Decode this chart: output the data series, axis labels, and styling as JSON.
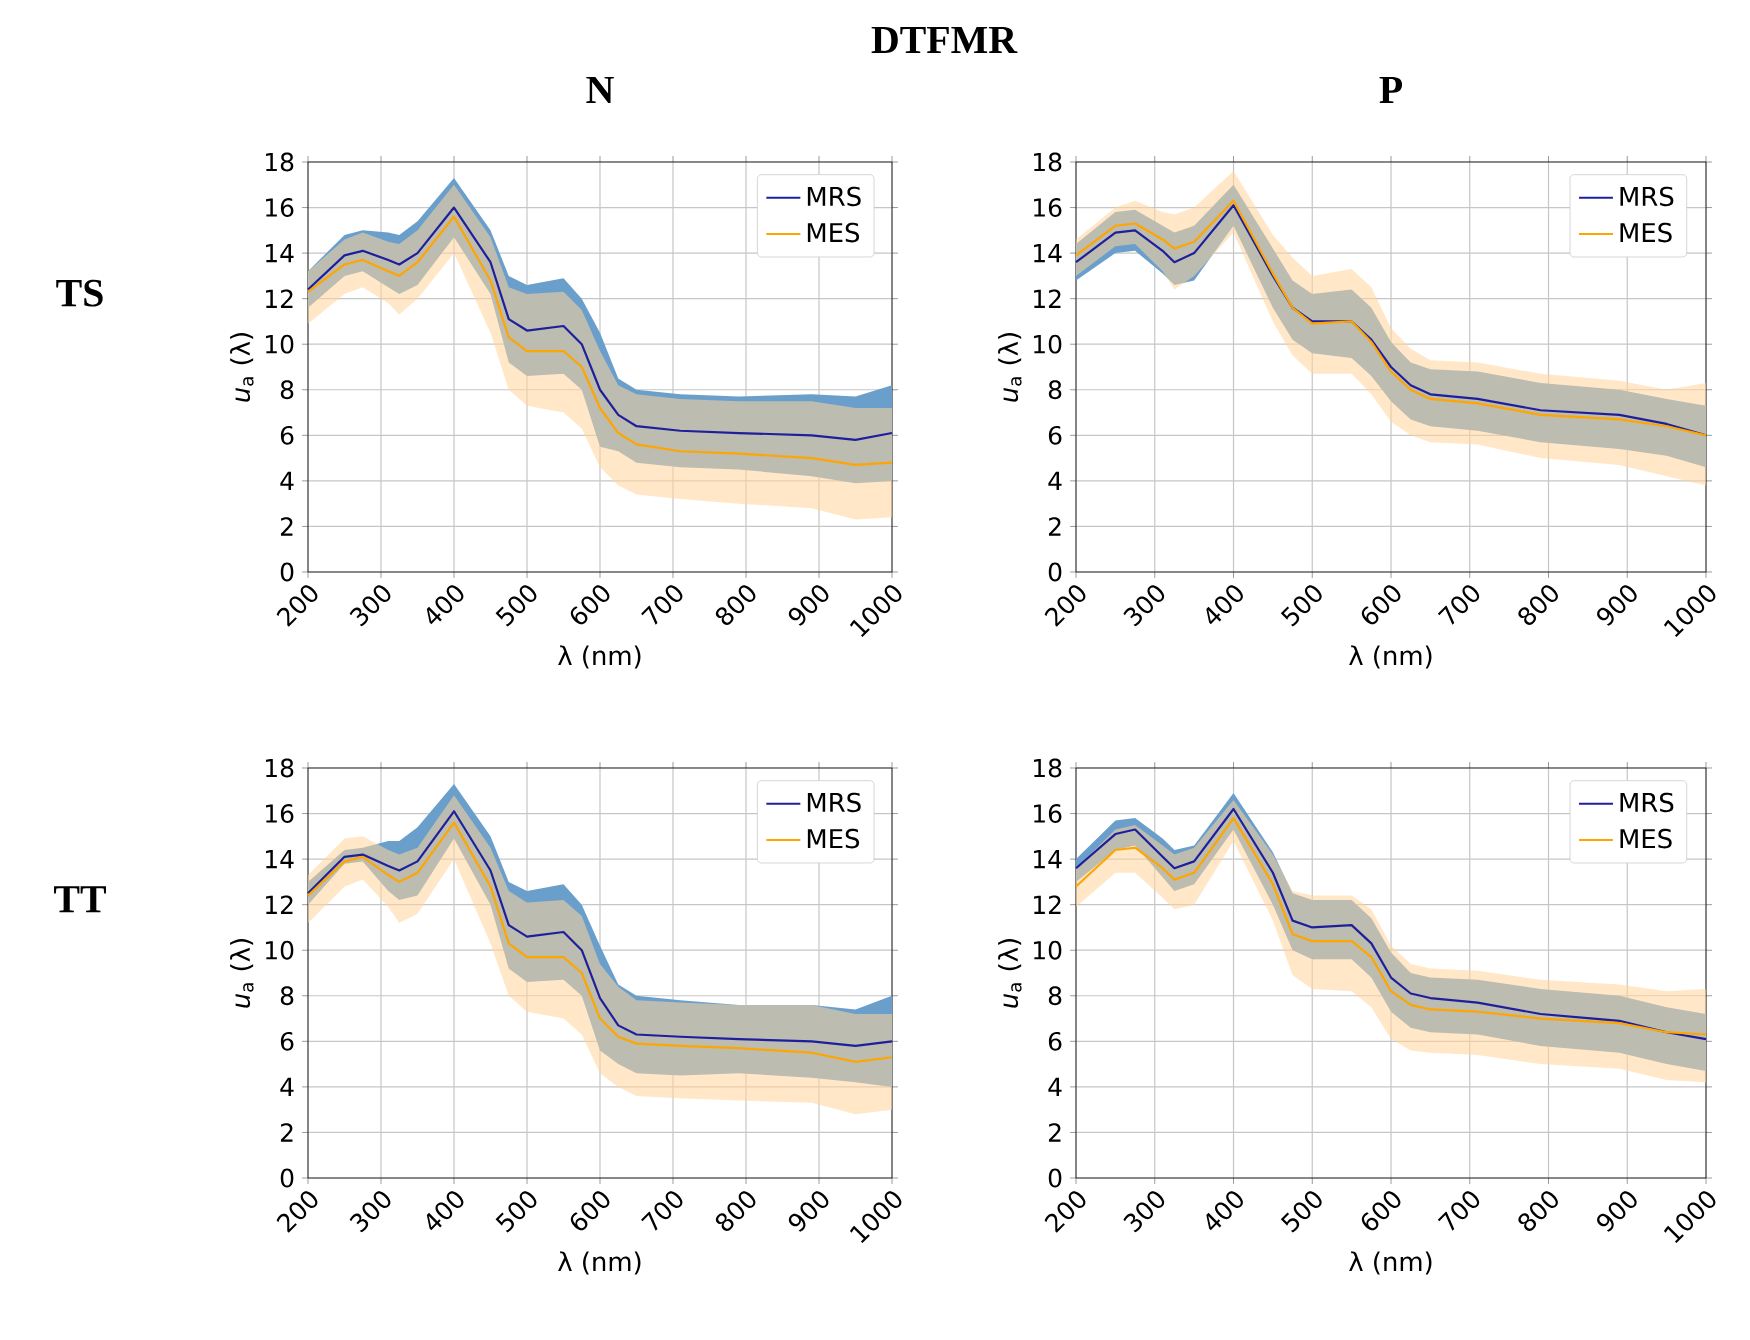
{
  "chart_data": [
    {
      "type": "line",
      "title": "N",
      "annotations": [
        "DTFMR",
        "TS"
      ],
      "xlabel": "λ (nm)",
      "ylabel": "*u*$_{a}$ (λ)",
      "x": [
        200,
        250,
        275,
        310,
        325,
        350,
        400,
        450,
        475,
        500,
        550,
        575,
        600,
        625,
        650,
        710,
        790,
        890,
        950,
        1000
      ],
      "xlim": [
        200,
        1000
      ],
      "ylim": [
        0,
        18
      ],
      "xticks": [
        200,
        300,
        400,
        500,
        600,
        700,
        800,
        900,
        1000
      ],
      "yticks": [
        0,
        2,
        4,
        6,
        8,
        10,
        12,
        14,
        16,
        18
      ],
      "grid": true,
      "legend": "top right",
      "series": [
        {
          "name": "MRS",
          "color": "#1f1f9c",
          "values": [
            12.4,
            13.9,
            14.1,
            13.7,
            13.5,
            14.0,
            16.0,
            13.6,
            11.1,
            10.6,
            10.8,
            10.0,
            8.0,
            6.9,
            6.4,
            6.2,
            6.1,
            6.0,
            5.8,
            6.1
          ],
          "upper": [
            13.2,
            14.8,
            15.0,
            14.9,
            14.8,
            15.4,
            17.3,
            15.0,
            13.0,
            12.6,
            12.9,
            12.0,
            10.5,
            8.5,
            8.0,
            7.8,
            7.7,
            7.8,
            7.7,
            8.2
          ],
          "lower": [
            11.6,
            13.0,
            13.2,
            12.5,
            12.2,
            12.6,
            14.7,
            12.2,
            9.2,
            8.6,
            8.7,
            8.0,
            5.5,
            5.3,
            4.8,
            4.6,
            4.5,
            4.2,
            3.9,
            4.0
          ]
        },
        {
          "name": "MES",
          "color": "#ffa500",
          "values": [
            12.3,
            13.5,
            13.7,
            13.2,
            13.0,
            13.6,
            15.6,
            12.8,
            10.3,
            9.7,
            9.7,
            9.0,
            7.2,
            6.1,
            5.6,
            5.3,
            5.2,
            5.0,
            4.7,
            4.8
          ],
          "upper": [
            13.2,
            14.6,
            14.9,
            14.5,
            14.4,
            15.0,
            17.0,
            14.7,
            12.5,
            12.2,
            12.3,
            11.5,
            9.7,
            8.2,
            7.8,
            7.6,
            7.5,
            7.5,
            7.2,
            7.2
          ],
          "lower": [
            10.9,
            12.2,
            12.5,
            11.8,
            11.3,
            12.0,
            14.0,
            10.5,
            8.0,
            7.3,
            7.0,
            6.3,
            4.6,
            3.8,
            3.4,
            3.2,
            3.0,
            2.8,
            2.3,
            2.4
          ]
        }
      ]
    },
    {
      "type": "line",
      "title": "P",
      "xlabel": "λ (nm)",
      "ylabel": "*u*$_{a}$ (λ)",
      "x": [
        200,
        250,
        275,
        310,
        325,
        350,
        400,
        450,
        475,
        500,
        550,
        575,
        600,
        625,
        650,
        710,
        790,
        890,
        950,
        1000
      ],
      "xlim": [
        200,
        1000
      ],
      "ylim": [
        0,
        18
      ],
      "xticks": [
        200,
        300,
        400,
        500,
        600,
        700,
        800,
        900,
        1000
      ],
      "yticks": [
        0,
        2,
        4,
        6,
        8,
        10,
        12,
        14,
        16,
        18
      ],
      "grid": true,
      "legend": "top right",
      "series": [
        {
          "name": "MRS",
          "color": "#1f1f9c",
          "values": [
            13.6,
            14.9,
            15.0,
            14.1,
            13.6,
            14.0,
            16.1,
            13.0,
            11.6,
            11.0,
            11.0,
            10.2,
            9.0,
            8.2,
            7.8,
            7.6,
            7.1,
            6.9,
            6.5,
            6.0
          ],
          "upper": [
            14.4,
            15.8,
            15.9,
            15.2,
            14.9,
            15.2,
            17.0,
            14.2,
            12.8,
            12.2,
            12.4,
            11.6,
            10.1,
            9.2,
            8.9,
            8.8,
            8.3,
            8.0,
            7.6,
            7.3
          ],
          "lower": [
            12.8,
            14.0,
            14.1,
            13.1,
            12.6,
            12.8,
            15.2,
            11.6,
            10.2,
            9.6,
            9.4,
            8.6,
            7.5,
            6.7,
            6.4,
            6.2,
            5.7,
            5.4,
            5.1,
            4.6
          ]
        },
        {
          "name": "MES",
          "color": "#ffa500",
          "values": [
            13.9,
            15.2,
            15.3,
            14.6,
            14.2,
            14.5,
            16.3,
            13.1,
            11.6,
            10.9,
            11.0,
            10.1,
            8.8,
            8.0,
            7.6,
            7.4,
            6.9,
            6.7,
            6.4,
            6.0
          ],
          "upper": [
            14.6,
            16.0,
            16.3,
            15.8,
            15.7,
            16.0,
            17.6,
            14.8,
            13.8,
            13.0,
            13.3,
            12.5,
            10.7,
            9.8,
            9.3,
            9.2,
            8.7,
            8.4,
            8.0,
            8.3
          ],
          "lower": [
            13.0,
            14.3,
            14.4,
            13.2,
            12.4,
            13.0,
            14.9,
            11.0,
            9.5,
            8.7,
            8.7,
            7.8,
            6.6,
            6.0,
            5.7,
            5.6,
            5.0,
            4.7,
            4.2,
            3.8
          ]
        }
      ]
    },
    {
      "type": "line",
      "annotations": [
        "TT"
      ],
      "xlabel": "λ (nm)",
      "ylabel": "*u*$_{a}$ (λ)",
      "x": [
        200,
        250,
        275,
        310,
        325,
        350,
        400,
        450,
        475,
        500,
        550,
        575,
        600,
        625,
        650,
        710,
        790,
        890,
        950,
        1000
      ],
      "xlim": [
        200,
        1000
      ],
      "ylim": [
        0,
        18
      ],
      "xticks": [
        200,
        300,
        400,
        500,
        600,
        700,
        800,
        900,
        1000
      ],
      "yticks": [
        0,
        2,
        4,
        6,
        8,
        10,
        12,
        14,
        16,
        18
      ],
      "grid": true,
      "legend": "top right",
      "series": [
        {
          "name": "MRS",
          "color": "#1f1f9c",
          "values": [
            12.5,
            14.1,
            14.2,
            13.7,
            13.5,
            13.9,
            16.1,
            13.5,
            11.1,
            10.6,
            10.8,
            10.0,
            7.9,
            6.7,
            6.3,
            6.2,
            6.1,
            6.0,
            5.8,
            6.0
          ],
          "upper": [
            13.0,
            14.4,
            14.5,
            14.8,
            14.8,
            15.4,
            17.3,
            15.0,
            13.0,
            12.6,
            12.9,
            12.0,
            10.2,
            8.5,
            8.0,
            7.8,
            7.6,
            7.6,
            7.4,
            8.0
          ],
          "lower": [
            12.0,
            13.8,
            13.9,
            12.6,
            12.2,
            12.4,
            14.9,
            12.0,
            9.2,
            8.6,
            8.7,
            8.0,
            5.6,
            5.0,
            4.6,
            4.5,
            4.6,
            4.4,
            4.2,
            4.0
          ]
        },
        {
          "name": "MES",
          "color": "#ffa500",
          "values": [
            12.4,
            13.9,
            14.1,
            13.3,
            13.0,
            13.4,
            15.6,
            12.8,
            10.3,
            9.7,
            9.7,
            9.0,
            7.0,
            6.2,
            5.9,
            5.8,
            5.7,
            5.5,
            5.1,
            5.3
          ],
          "upper": [
            13.3,
            14.9,
            15.0,
            14.4,
            14.2,
            14.5,
            16.8,
            14.5,
            12.6,
            12.1,
            12.2,
            11.5,
            9.4,
            8.4,
            7.8,
            7.7,
            7.6,
            7.6,
            7.2,
            7.2
          ],
          "lower": [
            11.2,
            12.8,
            13.1,
            11.9,
            11.2,
            11.6,
            14.0,
            10.3,
            8.0,
            7.3,
            7.0,
            6.3,
            4.6,
            4.0,
            3.6,
            3.5,
            3.4,
            3.3,
            2.8,
            3.0
          ]
        }
      ]
    },
    {
      "type": "line",
      "xlabel": "λ (nm)",
      "ylabel": "*u*$_{a}$ (λ)",
      "x": [
        200,
        250,
        275,
        310,
        325,
        350,
        400,
        450,
        475,
        500,
        550,
        575,
        600,
        625,
        650,
        710,
        790,
        890,
        950,
        1000
      ],
      "xlim": [
        200,
        1000
      ],
      "ylim": [
        0,
        18
      ],
      "xticks": [
        200,
        300,
        400,
        500,
        600,
        700,
        800,
        900,
        1000
      ],
      "yticks": [
        0,
        2,
        4,
        6,
        8,
        10,
        12,
        14,
        16,
        18
      ],
      "grid": true,
      "legend": "top right",
      "series": [
        {
          "name": "MRS",
          "color": "#1f1f9c",
          "values": [
            13.6,
            15.1,
            15.3,
            14.1,
            13.6,
            13.9,
            16.2,
            13.4,
            11.3,
            11.0,
            11.1,
            10.3,
            8.8,
            8.1,
            7.9,
            7.7,
            7.2,
            6.9,
            6.4,
            6.1
          ],
          "upper": [
            14.0,
            15.7,
            15.8,
            14.9,
            14.4,
            14.6,
            16.9,
            14.3,
            12.5,
            12.2,
            12.2,
            11.4,
            9.9,
            9.0,
            8.8,
            8.7,
            8.3,
            8.0,
            7.5,
            7.2
          ],
          "lower": [
            13.0,
            14.4,
            14.6,
            13.2,
            12.6,
            12.9,
            15.3,
            12.0,
            10.0,
            9.6,
            9.6,
            8.8,
            7.3,
            6.6,
            6.4,
            6.3,
            5.8,
            5.5,
            5.0,
            4.7
          ]
        },
        {
          "name": "MES",
          "color": "#ffa500",
          "values": [
            12.8,
            14.4,
            14.5,
            13.6,
            13.1,
            13.4,
            15.8,
            12.9,
            10.7,
            10.4,
            10.4,
            9.7,
            8.2,
            7.6,
            7.4,
            7.3,
            7.0,
            6.8,
            6.4,
            6.3
          ],
          "upper": [
            13.6,
            15.3,
            15.5,
            14.6,
            14.2,
            14.5,
            16.6,
            14.2,
            12.6,
            12.4,
            12.4,
            11.8,
            10.2,
            9.4,
            9.2,
            9.1,
            8.7,
            8.5,
            8.2,
            8.3
          ],
          "lower": [
            11.9,
            13.4,
            13.4,
            12.3,
            11.8,
            12.0,
            14.8,
            11.3,
            8.9,
            8.3,
            8.2,
            7.5,
            6.1,
            5.6,
            5.5,
            5.4,
            5.0,
            4.8,
            4.3,
            4.2
          ]
        }
      ]
    }
  ]
}
